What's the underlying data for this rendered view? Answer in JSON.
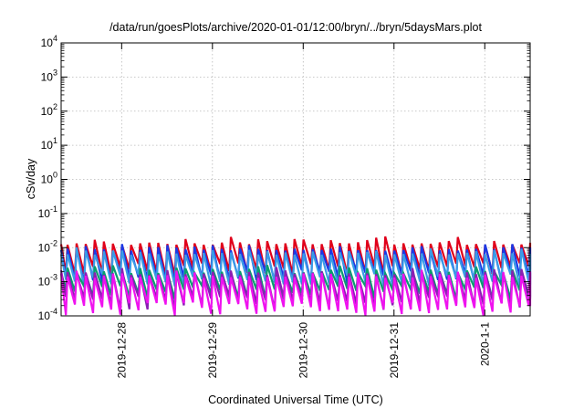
{
  "chart_data": {
    "type": "line",
    "title": "/data/run/goesPlots/archive/2020-01-01/12:00/bryn/../bryn/5daysMars.plot",
    "xlabel": "Coordinated Universal Time (UTC)",
    "ylabel": "cSv/day",
    "yscale": "log",
    "ylim": [
      0.0001,
      10000
    ],
    "y_ticks": [
      {
        "base": "10",
        "exp": "4"
      },
      {
        "base": "10",
        "exp": "3"
      },
      {
        "base": "10",
        "exp": "2"
      },
      {
        "base": "10",
        "exp": "1"
      },
      {
        "base": "10",
        "exp": "0"
      },
      {
        "base": "10",
        "exp": "-1"
      },
      {
        "base": "10",
        "exp": "-2"
      },
      {
        "base": "10",
        "exp": "-3"
      },
      {
        "base": "10",
        "exp": "-4"
      }
    ],
    "xlim": [
      "2019-12-27 08:00",
      "2020-01-01 12:00"
    ],
    "x_ticks": [
      "2019-12-28",
      "2019-12-29",
      "2019-12-30",
      "2019-12-31",
      "2020-1-1"
    ],
    "grid": true,
    "sawtooth_period_hours": 2.4,
    "series": [
      {
        "color": "#e0001a",
        "peak_range": [
          0.0085,
          0.022
        ],
        "trough_range": [
          0.0015,
          0.0035
        ]
      },
      {
        "color": "#1a39e6",
        "peak_range": [
          0.006,
          0.014
        ],
        "trough_range": [
          0.0009,
          0.0022
        ]
      },
      {
        "color": "#3a9ce6",
        "peak_range": [
          0.0045,
          0.011
        ],
        "trough_range": [
          0.0007,
          0.0017
        ]
      },
      {
        "color": "#0a9d6e",
        "peak_range": [
          0.0012,
          0.0035
        ],
        "trough_range": [
          0.0003,
          0.0008
        ]
      },
      {
        "color": "#8a1fb3",
        "peak_range": [
          0.0011,
          0.003
        ],
        "trough_range": [
          0.00015,
          0.0004
        ]
      },
      {
        "color": "#ef12ef",
        "peak_range": [
          0.0009,
          0.0025
        ],
        "trough_range": [
          0.0001,
          0.00025
        ]
      }
    ]
  }
}
